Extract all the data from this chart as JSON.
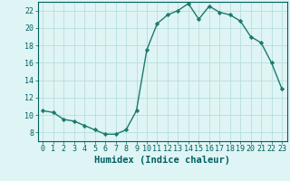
{
  "x": [
    0,
    1,
    2,
    3,
    4,
    5,
    6,
    7,
    8,
    9,
    10,
    11,
    12,
    13,
    14,
    15,
    16,
    17,
    18,
    19,
    20,
    21,
    22,
    23
  ],
  "y": [
    10.5,
    10.3,
    9.5,
    9.3,
    8.8,
    8.3,
    7.8,
    7.8,
    8.3,
    10.5,
    17.5,
    20.5,
    21.5,
    22.0,
    22.8,
    21.0,
    22.5,
    21.8,
    21.5,
    20.8,
    19.0,
    18.3,
    16.0,
    13.0
  ],
  "line_color": "#1a7a6e",
  "marker": "D",
  "marker_size": 2.2,
  "bg_color": "#dff4f4",
  "grid_color": "#b8dede",
  "xlabel": "Humidex (Indice chaleur)",
  "xlabel_color": "#006060",
  "xlabel_fontsize": 7.5,
  "xlim": [
    -0.5,
    23.5
  ],
  "ylim": [
    7,
    23
  ],
  "yticks": [
    8,
    10,
    12,
    14,
    16,
    18,
    20,
    22
  ],
  "xticks": [
    0,
    1,
    2,
    3,
    4,
    5,
    6,
    7,
    8,
    9,
    10,
    11,
    12,
    13,
    14,
    15,
    16,
    17,
    18,
    19,
    20,
    21,
    22,
    23
  ],
  "tick_fontsize": 6.0,
  "tick_color": "#006060",
  "spine_color": "#006060",
  "linewidth": 1.0
}
